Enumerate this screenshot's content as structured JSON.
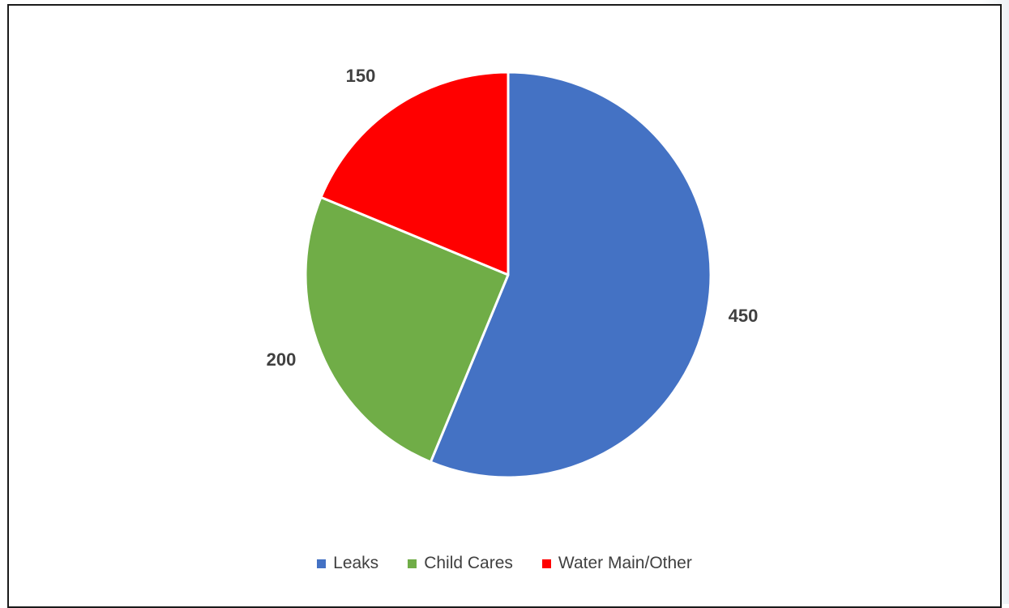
{
  "chart_data": {
    "type": "pie",
    "title": "",
    "categories": [
      "Leaks",
      "Child Cares",
      "Water Main/Other"
    ],
    "values": [
      450,
      200,
      150
    ],
    "colors": [
      "#4472C4",
      "#70AD47",
      "#FF0000"
    ],
    "data_labels": [
      "450",
      "200",
      "150"
    ],
    "legend_position": "bottom",
    "start_angle_deg": 0,
    "direction": "clockwise"
  }
}
